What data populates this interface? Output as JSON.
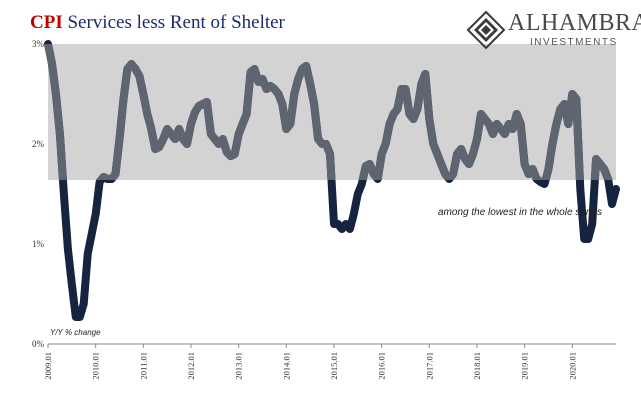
{
  "header": {
    "title_part1": "CPI",
    "title_part2": " Services less Rent of Shelter"
  },
  "logo": {
    "name": "ALHAMBRA",
    "sub": "INVESTMENTS"
  },
  "colors": {
    "line": "#17243f",
    "band": "#d3d3d3",
    "line_in_band": "#5e6470",
    "title_red": "#c00000",
    "title_navy": "#1f2a6b"
  },
  "chart_data": {
    "type": "line",
    "title": "CPI Services less Rent of Shelter",
    "ylabel": "Y/Y % change",
    "xlabel": "",
    "ylim": [
      0,
      3
    ],
    "yticks": [
      0,
      1,
      2,
      3
    ],
    "ytick_labels": [
      "0%",
      "1%",
      "2%",
      "3%"
    ],
    "xlim": [
      "2009-01",
      "2020-12"
    ],
    "xtick_labels": [
      "2009.01",
      "2010.01",
      "2011.01",
      "2012.01",
      "2013.01",
      "2014.01",
      "2015.01",
      "2016.01",
      "2017.01",
      "2018.01",
      "2019.01",
      "2020.01"
    ],
    "shaded_band": {
      "from": 1.64,
      "to": 3.0
    },
    "annotation": "among the lowest in the whole series",
    "grid": false,
    "legend": "none",
    "series": [
      {
        "values": [
          3.0,
          2.8,
          2.5,
          2.1,
          1.5,
          0.95,
          0.6,
          0.27,
          0.27,
          0.4,
          0.9,
          1.1,
          1.3,
          1.62,
          1.67,
          1.65,
          1.65,
          1.7,
          2.05,
          2.45,
          2.75,
          2.8,
          2.75,
          2.68,
          2.5,
          2.3,
          2.15,
          1.95,
          1.97,
          2.05,
          2.15,
          2.1,
          2.05,
          2.15,
          2.05,
          2.0,
          2.2,
          2.32,
          2.38,
          2.4,
          2.42,
          2.1,
          2.05,
          2.0,
          2.05,
          1.92,
          1.88,
          1.9,
          2.1,
          2.2,
          2.3,
          2.72,
          2.75,
          2.62,
          2.65,
          2.55,
          2.58,
          2.55,
          2.5,
          2.4,
          2.15,
          2.2,
          2.5,
          2.65,
          2.75,
          2.78,
          2.6,
          2.4,
          2.05,
          2.0,
          2.0,
          1.9,
          1.2,
          1.2,
          1.15,
          1.2,
          1.15,
          1.3,
          1.5,
          1.6,
          1.78,
          1.8,
          1.7,
          1.65,
          1.9,
          2.0,
          2.2,
          2.3,
          2.35,
          2.55,
          2.55,
          2.3,
          2.25,
          2.35,
          2.6,
          2.7,
          2.25,
          2.0,
          1.9,
          1.8,
          1.7,
          1.65,
          1.7,
          1.9,
          1.95,
          1.85,
          1.8,
          1.9,
          2.05,
          2.3,
          2.25,
          2.2,
          2.1,
          2.2,
          2.15,
          2.1,
          2.2,
          2.15,
          2.3,
          2.2,
          1.8,
          1.7,
          1.75,
          1.65,
          1.62,
          1.6,
          1.75,
          2.0,
          2.2,
          2.35,
          2.4,
          2.2,
          2.5,
          2.45,
          1.55,
          1.05,
          1.05,
          1.2,
          1.85,
          1.8,
          1.75,
          1.65,
          1.4,
          1.55
        ]
      }
    ]
  }
}
